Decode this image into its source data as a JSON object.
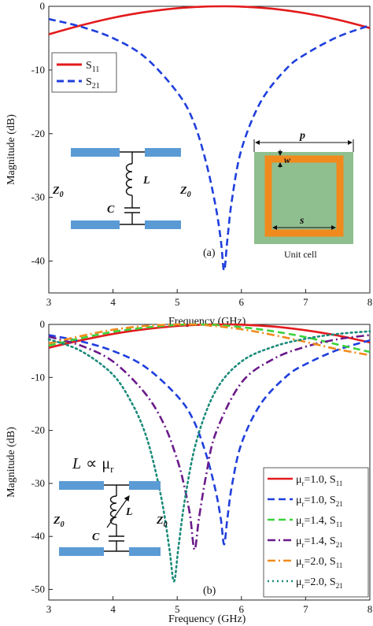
{
  "colors": {
    "red": "#e31a1c",
    "blue": "#1f3fdc",
    "green": "#3cd23c",
    "purple": "#6b1a8a",
    "orange": "#f08a1c",
    "teal": "#1a8a7a",
    "cell_bg": "#8fbf8f",
    "ring": "#f08a1c",
    "pad": "#5b9bd5"
  },
  "chart_data": [
    {
      "type": "line",
      "panel_label": "(a)",
      "xlabel": "Frequency (GHz)",
      "ylabel": "Magnitude (dB)",
      "xlim": [
        3,
        8
      ],
      "ylim": [
        -45,
        0
      ],
      "xticks": [
        "3",
        "4",
        "5",
        "6",
        "7",
        "8"
      ],
      "yticks": [
        "0",
        "-10",
        "-20",
        "-30",
        "-40"
      ],
      "legend_position": "top-left",
      "series": [
        {
          "name": "S11",
          "name_base": "S",
          "name_sub": "11",
          "color": "red",
          "dash": "solid",
          "x": [
            3.0,
            3.5,
            4.0,
            4.5,
            5.0,
            5.4,
            5.7,
            6.0,
            6.5,
            7.0,
            7.5,
            8.0
          ],
          "y": [
            -4.4,
            -3.0,
            -1.8,
            -0.9,
            -0.3,
            -0.05,
            0,
            -0.05,
            -0.4,
            -1.1,
            -2.1,
            -3.4
          ]
        },
        {
          "name": "S21",
          "name_base": "S",
          "name_sub": "21",
          "color": "blue",
          "dash": "dash",
          "x": [
            3.0,
            3.5,
            4.0,
            4.5,
            5.0,
            5.25,
            5.45,
            5.6,
            5.68,
            5.73,
            5.78,
            5.85,
            6.0,
            6.3,
            6.7,
            7.0,
            7.5,
            8.0
          ],
          "y": [
            -2.0,
            -3.2,
            -5.0,
            -8.0,
            -13.5,
            -18.0,
            -24.5,
            -31.5,
            -36.8,
            -41.5,
            -36.8,
            -30.5,
            -22.5,
            -15.0,
            -9.8,
            -7.5,
            -4.8,
            -3.0
          ]
        }
      ],
      "annotations": {
        "circuit": {
          "z0_left": "Z",
          "z0_sub": "0",
          "z0_right": "Z",
          "inductor": "L",
          "capacitor": "C"
        },
        "unit_cell": {
          "caption": "Unit cell",
          "p": "p",
          "w": "w",
          "s": "s"
        }
      }
    },
    {
      "type": "line",
      "panel_label": "(b)",
      "xlabel": "Frequency (GHz)",
      "ylabel": "Magnitude (dB)",
      "xlim": [
        3,
        8
      ],
      "ylim": [
        -52,
        0
      ],
      "xticks": [
        "3",
        "4",
        "5",
        "6",
        "7",
        "8"
      ],
      "yticks": [
        "0",
        "-10",
        "-20",
        "-30",
        "-40",
        "-50"
      ],
      "legend_position": "bottom-right",
      "series": [
        {
          "name": "μr=1.0, S11",
          "mu": "1.0",
          "sparam": "11",
          "color": "red",
          "dash": "solid",
          "x": [
            3.0,
            3.5,
            4.0,
            4.5,
            5.0,
            5.4,
            5.7,
            6.0,
            6.5,
            7.0,
            7.5,
            8.0
          ],
          "y": [
            -4.4,
            -3.0,
            -1.8,
            -0.9,
            -0.3,
            -0.05,
            0,
            -0.05,
            -0.4,
            -1.1,
            -2.1,
            -3.4
          ]
        },
        {
          "name": "μr=1.0, S21",
          "mu": "1.0",
          "sparam": "21",
          "color": "blue",
          "dash": "dash",
          "x": [
            3.0,
            3.5,
            4.0,
            4.5,
            5.0,
            5.25,
            5.45,
            5.6,
            5.68,
            5.73,
            5.78,
            5.85,
            6.0,
            6.3,
            6.7,
            7.0,
            7.5,
            8.0
          ],
          "y": [
            -2.0,
            -3.2,
            -5.0,
            -8.0,
            -13.5,
            -18.0,
            -24.5,
            -31.5,
            -36.8,
            -41.5,
            -36.8,
            -30.5,
            -22.5,
            -15.0,
            -9.8,
            -7.5,
            -4.8,
            -3.0
          ]
        },
        {
          "name": "μr=1.4, S11",
          "mu": "1.4",
          "sparam": "11",
          "color": "green",
          "dash": "dash",
          "x": [
            3.0,
            3.5,
            4.0,
            4.5,
            5.0,
            5.3,
            5.6,
            6.0,
            6.5,
            7.0,
            7.5,
            8.0
          ],
          "y": [
            -4.0,
            -2.6,
            -1.4,
            -0.6,
            -0.1,
            0,
            -0.1,
            -0.5,
            -1.3,
            -2.4,
            -3.8,
            -5.2
          ]
        },
        {
          "name": "μr=1.4, S21",
          "mu": "1.4",
          "sparam": "21",
          "color": "purple",
          "dash": "dashdot",
          "x": [
            3.0,
            3.5,
            4.0,
            4.5,
            4.8,
            5.0,
            5.1,
            5.2,
            5.27,
            5.34,
            5.45,
            5.6,
            6.0,
            6.5,
            7.0,
            7.5,
            8.0
          ],
          "y": [
            -2.3,
            -4.0,
            -7.0,
            -13.0,
            -19.0,
            -25.5,
            -30.0,
            -36.0,
            -42.5,
            -36.5,
            -28.5,
            -20.5,
            -11.0,
            -6.5,
            -4.2,
            -2.8,
            -2.0
          ]
        },
        {
          "name": "μr=2.0, S11",
          "mu": "2.0",
          "sparam": "11",
          "color": "orange",
          "dash": "dashdot",
          "x": [
            3.0,
            3.5,
            4.0,
            4.5,
            5.0,
            5.2,
            5.5,
            6.0,
            6.5,
            7.0,
            7.5,
            8.0
          ],
          "y": [
            -3.6,
            -2.2,
            -1.0,
            -0.3,
            0,
            0,
            -0.2,
            -0.9,
            -2.0,
            -3.3,
            -4.7,
            -5.8
          ]
        },
        {
          "name": "μr=2.0, S21",
          "mu": "2.0",
          "sparam": "21",
          "color": "teal",
          "dash": "dot",
          "x": [
            3.0,
            3.5,
            4.0,
            4.3,
            4.5,
            4.65,
            4.78,
            4.88,
            4.95,
            5.02,
            5.12,
            5.3,
            5.6,
            6.0,
            6.5,
            7.0,
            7.5,
            8.0
          ],
          "y": [
            -2.8,
            -5.0,
            -9.5,
            -15.0,
            -20.5,
            -27.0,
            -34.5,
            -42.5,
            -48.5,
            -42.0,
            -33.0,
            -22.0,
            -12.5,
            -7.0,
            -4.2,
            -2.7,
            -1.8,
            -1.3
          ]
        }
      ],
      "annotations": {
        "formula": {
          "L": "L",
          "prop": "∝",
          "mu": "μ",
          "r": "r"
        },
        "circuit": {
          "z0_left": "Z",
          "z0_sub": "0",
          "z0_right": "Z",
          "inductor": "L",
          "capacitor": "C"
        }
      }
    }
  ]
}
